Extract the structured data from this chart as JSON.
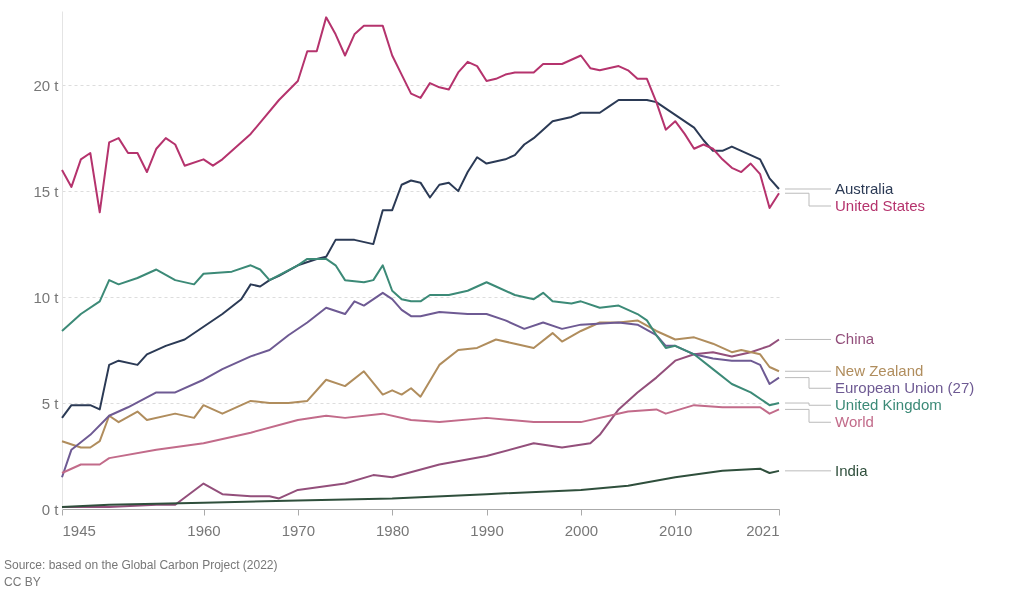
{
  "chart_data": {
    "type": "line",
    "xlim": [
      1945,
      2021
    ],
    "xticks": [
      1945,
      1960,
      1970,
      1980,
      1990,
      2000,
      2010,
      2021
    ],
    "ylim": [
      0,
      23.5
    ],
    "yticks": [
      {
        "value": 0,
        "label": "0 t"
      },
      {
        "value": 5,
        "label": "5 t"
      },
      {
        "value": 10,
        "label": "10 t"
      },
      {
        "value": 15,
        "label": "15 t"
      },
      {
        "value": 20,
        "label": "20 t"
      }
    ],
    "grid": "y",
    "annotations": [
      "Source: based on the Global Carbon Project (2022)",
      "CC BY"
    ],
    "series": [
      {
        "name": "Australia",
        "color": "#2b3a55",
        "x": [
          1945,
          1946,
          1948,
          1949,
          1950,
          1951,
          1953,
          1954,
          1956,
          1958,
          1960,
          1962,
          1964,
          1965,
          1966,
          1967,
          1968,
          1970,
          1972,
          1973,
          1974,
          1976,
          1978,
          1979,
          1980,
          1981,
          1982,
          1983,
          1984,
          1985,
          1986,
          1987,
          1988,
          1989,
          1990,
          1992,
          1993,
          1994,
          1995,
          1997,
          1999,
          2000,
          2002,
          2003,
          2004,
          2006,
          2007,
          2008,
          2010,
          2012,
          2013,
          2014,
          2015,
          2016,
          2017,
          2018,
          2019,
          2020,
          2021
        ],
        "values": [
          4.3,
          4.9,
          4.9,
          4.7,
          6.8,
          7.0,
          6.8,
          7.3,
          7.7,
          8.0,
          8.6,
          9.2,
          9.9,
          10.6,
          10.5,
          10.8,
          11.0,
          11.5,
          11.8,
          11.9,
          12.7,
          12.7,
          12.5,
          14.1,
          14.1,
          15.3,
          15.5,
          15.4,
          14.7,
          15.3,
          15.4,
          15.0,
          15.9,
          16.6,
          16.3,
          16.5,
          16.7,
          17.2,
          17.5,
          18.3,
          18.5,
          18.7,
          18.7,
          19.0,
          19.3,
          19.3,
          19.3,
          19.2,
          18.6,
          18.0,
          17.4,
          16.9,
          16.9,
          17.1,
          16.9,
          16.7,
          16.5,
          15.6,
          15.1
        ]
      },
      {
        "name": "United States",
        "color": "#b5336d",
        "x": [
          1945,
          1946,
          1947,
          1948,
          1949,
          1950,
          1951,
          1952,
          1953,
          1954,
          1955,
          1956,
          1957,
          1958,
          1960,
          1961,
          1962,
          1965,
          1968,
          1970,
          1971,
          1972,
          1973,
          1974,
          1975,
          1976,
          1977,
          1979,
          1980,
          1981,
          1982,
          1983,
          1984,
          1985,
          1986,
          1987,
          1988,
          1989,
          1990,
          1991,
          1992,
          1993,
          1995,
          1996,
          1998,
          2000,
          2001,
          2002,
          2004,
          2005,
          2006,
          2007,
          2008,
          2009,
          2010,
          2011,
          2012,
          2013,
          2014,
          2015,
          2016,
          2017,
          2018,
          2019,
          2020,
          2021
        ],
        "values": [
          16.0,
          15.2,
          16.5,
          16.8,
          14.0,
          17.3,
          17.5,
          16.8,
          16.8,
          15.9,
          17.0,
          17.5,
          17.2,
          16.2,
          16.5,
          16.2,
          16.5,
          17.7,
          19.3,
          20.2,
          21.6,
          21.6,
          23.2,
          22.4,
          21.4,
          22.4,
          22.8,
          22.8,
          21.4,
          20.5,
          19.6,
          19.4,
          20.1,
          19.9,
          19.8,
          20.6,
          21.1,
          20.9,
          20.2,
          20.3,
          20.5,
          20.6,
          20.6,
          21.0,
          21.0,
          21.4,
          20.8,
          20.7,
          20.9,
          20.7,
          20.3,
          20.3,
          19.2,
          17.9,
          18.3,
          17.7,
          17.0,
          17.2,
          17.0,
          16.5,
          16.1,
          15.9,
          16.3,
          15.8,
          14.2,
          14.9
        ]
      },
      {
        "name": "China",
        "color": "#934f7b",
        "x": [
          1945,
          1950,
          1955,
          1957,
          1960,
          1962,
          1965,
          1967,
          1968,
          1970,
          1975,
          1978,
          1980,
          1985,
          1990,
          1995,
          1998,
          2001,
          2002,
          2004,
          2006,
          2008,
          2010,
          2012,
          2014,
          2016,
          2018,
          2020,
          2021
        ],
        "values": [
          0.1,
          0.1,
          0.2,
          0.2,
          1.2,
          0.7,
          0.6,
          0.6,
          0.5,
          0.9,
          1.2,
          1.6,
          1.5,
          2.1,
          2.5,
          3.1,
          2.9,
          3.1,
          3.5,
          4.7,
          5.5,
          6.2,
          7.0,
          7.3,
          7.4,
          7.2,
          7.4,
          7.7,
          8.0
        ]
      },
      {
        "name": "New Zealand",
        "color": "#b08d5d",
        "x": [
          1945,
          1947,
          1948,
          1949,
          1950,
          1951,
          1953,
          1954,
          1957,
          1959,
          1960,
          1962,
          1965,
          1967,
          1969,
          1971,
          1973,
          1975,
          1977,
          1979,
          1980,
          1981,
          1982,
          1983,
          1985,
          1987,
          1989,
          1991,
          1993,
          1995,
          1997,
          1998,
          2000,
          2002,
          2004,
          2006,
          2008,
          2010,
          2012,
          2014,
          2016,
          2017,
          2019,
          2020,
          2021
        ],
        "values": [
          3.2,
          2.9,
          2.9,
          3.2,
          4.4,
          4.1,
          4.6,
          4.2,
          4.5,
          4.3,
          4.9,
          4.5,
          5.1,
          5.0,
          5.0,
          5.1,
          6.1,
          5.8,
          6.5,
          5.4,
          5.6,
          5.4,
          5.7,
          5.3,
          6.8,
          7.5,
          7.6,
          8.0,
          7.8,
          7.6,
          8.3,
          7.9,
          8.4,
          8.8,
          8.8,
          8.9,
          8.4,
          8.0,
          8.1,
          7.8,
          7.4,
          7.5,
          7.3,
          6.7,
          6.5
        ]
      },
      {
        "name": "European Union (27)",
        "color": "#6e5a93",
        "x": [
          1945,
          1946,
          1948,
          1950,
          1952,
          1955,
          1957,
          1960,
          1962,
          1965,
          1967,
          1969,
          1971,
          1973,
          1975,
          1976,
          1977,
          1979,
          1980,
          1981,
          1982,
          1983,
          1985,
          1988,
          1990,
          1992,
          1994,
          1996,
          1998,
          2000,
          2004,
          2006,
          2008,
          2009,
          2010,
          2012,
          2014,
          2016,
          2018,
          2019,
          2020,
          2021
        ],
        "values": [
          1.5,
          2.8,
          3.5,
          4.4,
          4.8,
          5.5,
          5.5,
          6.1,
          6.6,
          7.2,
          7.5,
          8.2,
          8.8,
          9.5,
          9.2,
          9.8,
          9.6,
          10.2,
          9.9,
          9.4,
          9.1,
          9.1,
          9.3,
          9.2,
          9.2,
          8.9,
          8.5,
          8.8,
          8.5,
          8.7,
          8.8,
          8.7,
          8.2,
          7.7,
          7.7,
          7.3,
          7.1,
          7.0,
          7.0,
          6.8,
          5.9,
          6.2
        ]
      },
      {
        "name": "United Kingdom",
        "color": "#3c8a77",
        "x": [
          1945,
          1947,
          1949,
          1950,
          1951,
          1953,
          1955,
          1957,
          1959,
          1960,
          1963,
          1965,
          1966,
          1967,
          1970,
          1971,
          1973,
          1974,
          1975,
          1977,
          1978,
          1979,
          1980,
          1981,
          1982,
          1983,
          1984,
          1986,
          1988,
          1990,
          1991,
          1993,
          1995,
          1996,
          1997,
          1999,
          2000,
          2002,
          2004,
          2006,
          2007,
          2008,
          2009,
          2010,
          2012,
          2014,
          2016,
          2018,
          2020,
          2021
        ],
        "values": [
          8.4,
          9.2,
          9.8,
          10.8,
          10.6,
          10.9,
          11.3,
          10.8,
          10.6,
          11.1,
          11.2,
          11.5,
          11.3,
          10.8,
          11.5,
          11.8,
          11.8,
          11.5,
          10.8,
          10.7,
          10.8,
          11.5,
          10.3,
          9.9,
          9.8,
          9.8,
          10.1,
          10.1,
          10.3,
          10.7,
          10.5,
          10.1,
          9.9,
          10.2,
          9.8,
          9.7,
          9.8,
          9.5,
          9.6,
          9.2,
          8.9,
          8.2,
          7.6,
          7.7,
          7.3,
          6.6,
          5.9,
          5.5,
          4.9,
          5.0
        ]
      },
      {
        "name": "World",
        "color": "#c26b8a",
        "x": [
          1945,
          1947,
          1949,
          1950,
          1955,
          1960,
          1965,
          1970,
          1973,
          1975,
          1979,
          1982,
          1985,
          1990,
          1995,
          2000,
          2005,
          2008,
          2009,
          2012,
          2015,
          2019,
          2020,
          2021
        ],
        "values": [
          1.7,
          2.1,
          2.1,
          2.4,
          2.8,
          3.1,
          3.6,
          4.2,
          4.4,
          4.3,
          4.5,
          4.2,
          4.1,
          4.3,
          4.1,
          4.1,
          4.6,
          4.7,
          4.5,
          4.9,
          4.8,
          4.8,
          4.5,
          4.7
        ]
      },
      {
        "name": "India",
        "color": "#2f4f3c",
        "x": [
          1945,
          1950,
          1960,
          1970,
          1980,
          1990,
          2000,
          2005,
          2010,
          2015,
          2019,
          2020,
          2021
        ],
        "values": [
          0.1,
          0.2,
          0.3,
          0.4,
          0.5,
          0.7,
          0.9,
          1.1,
          1.5,
          1.8,
          1.9,
          1.7,
          1.8
        ]
      }
    ]
  }
}
